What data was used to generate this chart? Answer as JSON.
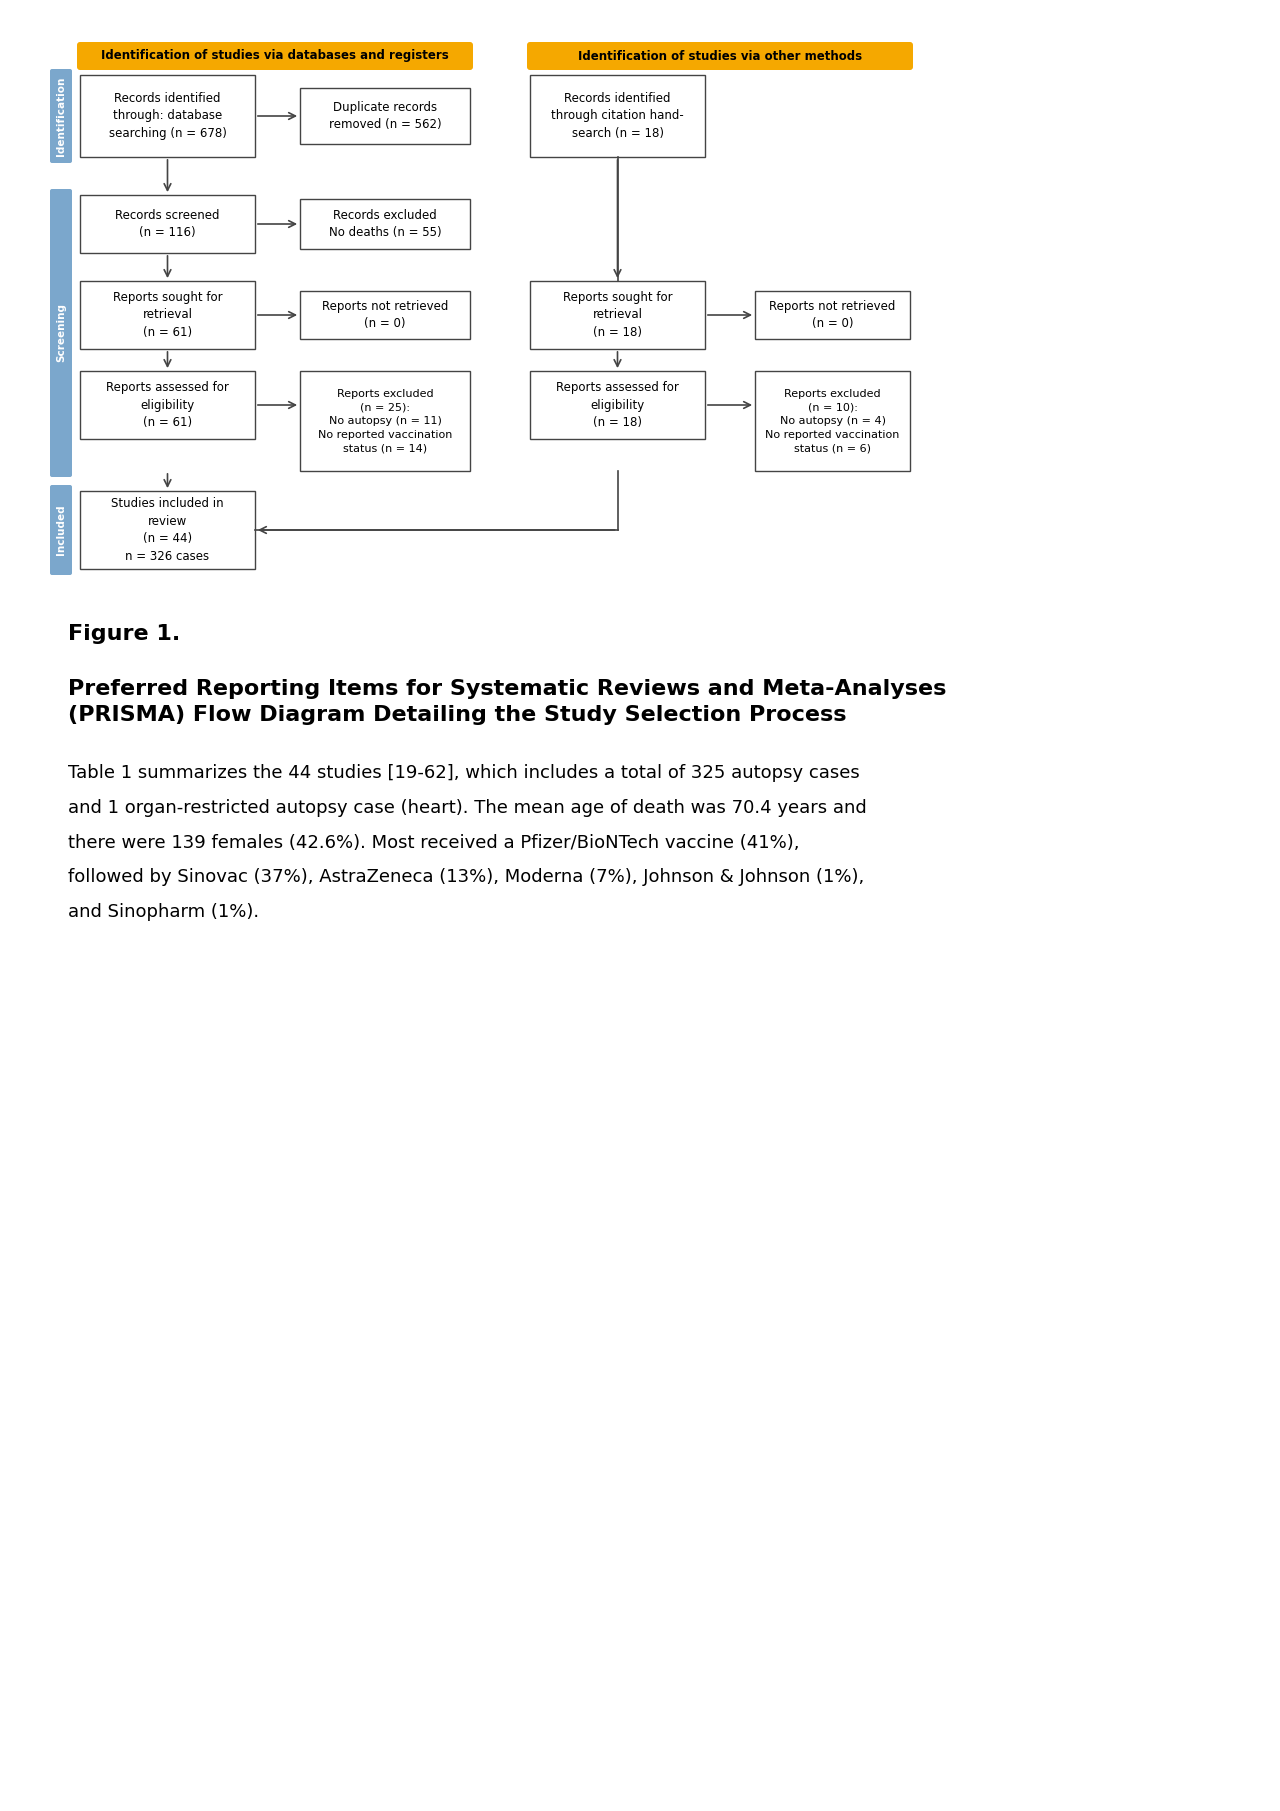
{
  "bg_color": "#ffffff",
  "gold_color": "#F5A800",
  "blue_sidebar_color": "#7BA7CC",
  "box_border_color": "#444444",
  "box_fill": "#ffffff",
  "text_color": "#000000",
  "arrow_color": "#444444",
  "header_left": "Identification of studies via databases and registers",
  "header_right": "Identification of studies via other methods",
  "figure_label": "Figure 1.",
  "figure_title": "Preferred Reporting Items for Systematic Reviews and Meta-Analyses\n(PRISMA) Flow Diagram Detailing the Study Selection Process",
  "body_text": "Table 1 summarizes the 44 studies [19-62], which includes a total of 325 autopsy cases\nand 1 organ-restricted autopsy case (heart). The mean age of death was 70.4 years and\nthere were 139 females (42.6%). Most received a Pfizer/BioNTech vaccine (41%),\nfollowed by Sinovac (37%), AstraZeneca (13%), Moderna (7%), Johnson & Johnson (1%),\nand Sinopharm (1%)."
}
